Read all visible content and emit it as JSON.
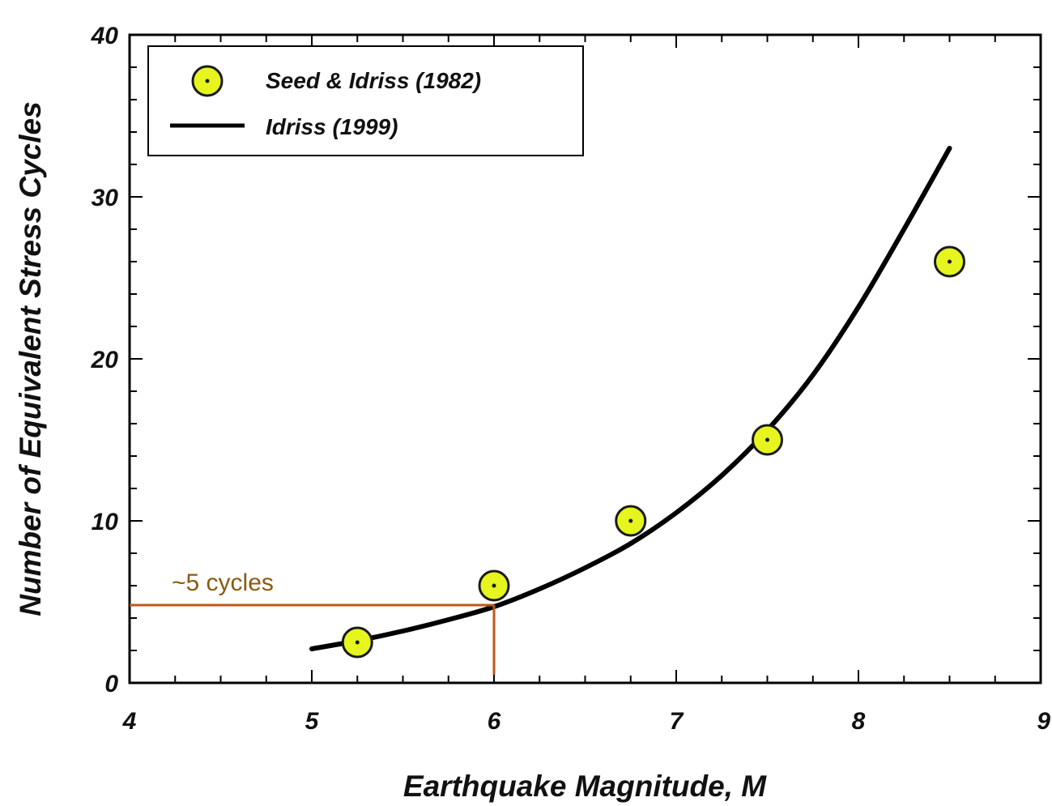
{
  "chart_data": {
    "type": "scatter",
    "title": "",
    "xlabel": "Earthquake Magnitude, M",
    "ylabel": "Number of Equivalent Stress Cycles",
    "xlim": [
      4,
      9
    ],
    "ylim": [
      0,
      40
    ],
    "x_ticks": [
      4,
      5,
      6,
      7,
      8,
      9
    ],
    "y_ticks": [
      0,
      10,
      20,
      30,
      40
    ],
    "grid": false,
    "legend_position": "top-left",
    "series": [
      {
        "name": "Seed & Idriss (1982)",
        "kind": "points",
        "color": "#e6f51e",
        "x": [
          5.25,
          6.0,
          6.75,
          7.5,
          8.5
        ],
        "y": [
          2.5,
          6.0,
          10.0,
          15.0,
          26.0
        ]
      },
      {
        "name": "Idriss (1999)",
        "kind": "line",
        "color": "#000000",
        "x": [
          5.0,
          5.25,
          5.5,
          5.75,
          6.0,
          6.25,
          6.5,
          6.75,
          7.0,
          7.25,
          7.5,
          7.75,
          8.0,
          8.25,
          8.5
        ],
        "y": [
          2.1,
          2.6,
          3.2,
          3.9,
          4.7,
          5.8,
          7.1,
          8.6,
          10.5,
          12.8,
          15.6,
          19.0,
          23.2,
          28.0,
          33.0
        ]
      }
    ],
    "annotation": {
      "text": "~5 cycles",
      "x": 6.0,
      "y": 4.8,
      "color": "#c0561b",
      "text_color": "#8b5a10"
    }
  }
}
